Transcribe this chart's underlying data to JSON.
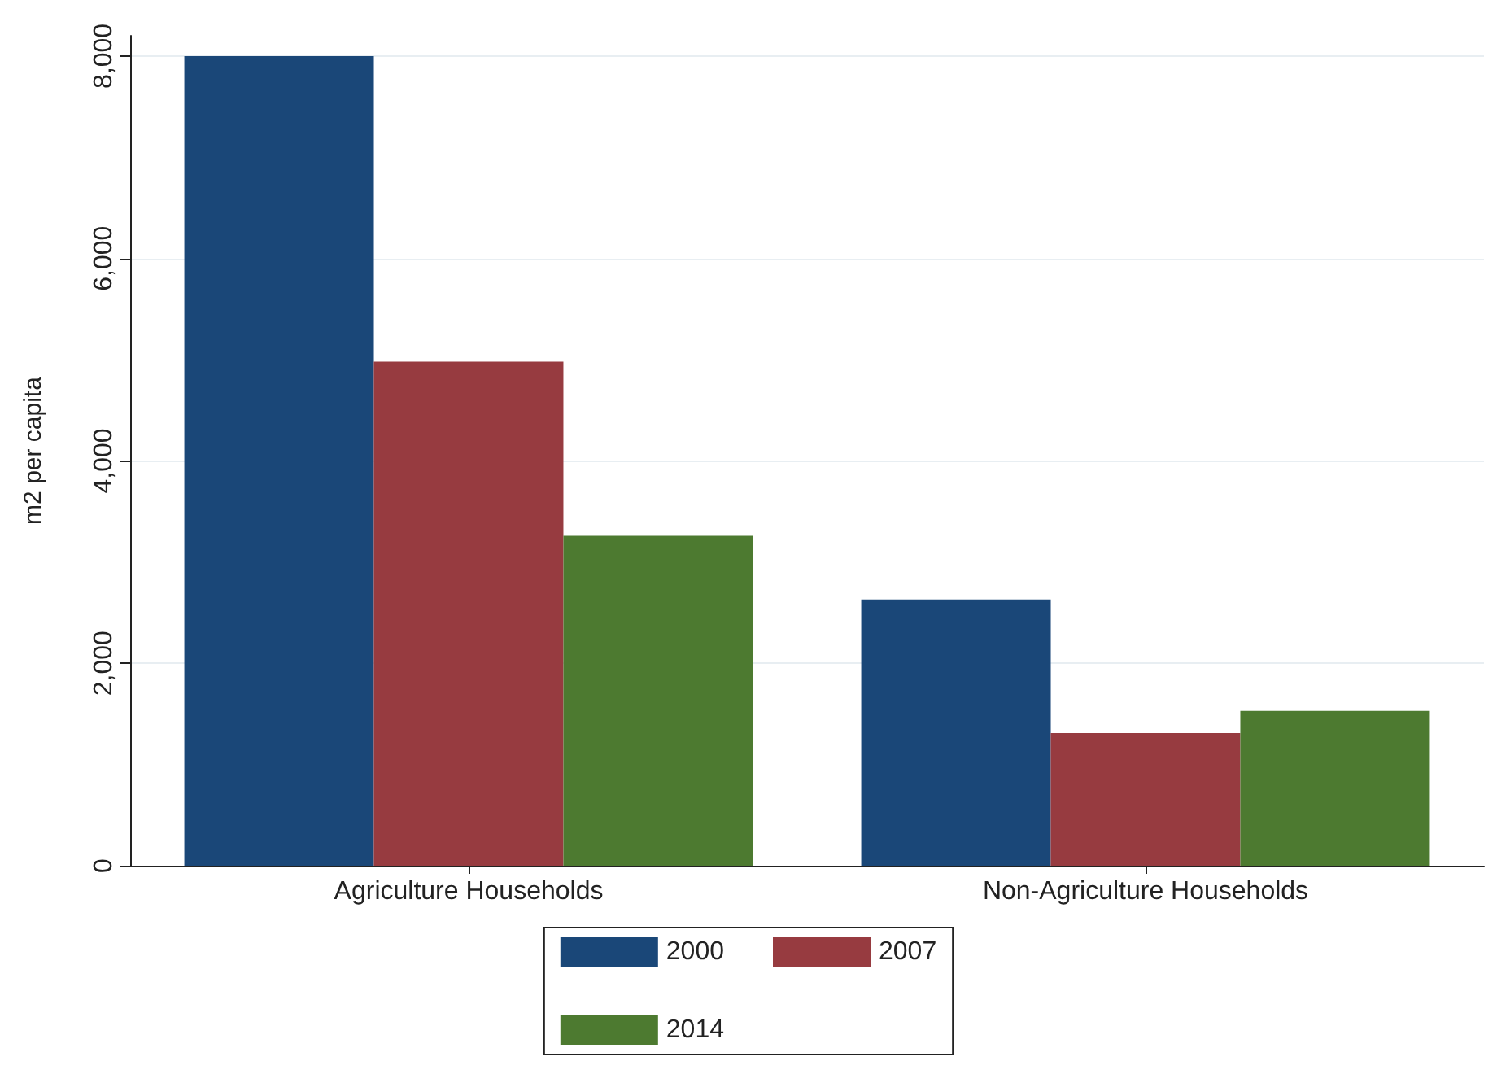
{
  "chart_data": {
    "type": "bar",
    "ylabel": "m2 per capita",
    "categories": [
      "Agriculture Households",
      "Non-Agriculture Households"
    ],
    "series": [
      {
        "name": "2000",
        "color": "#1a4778",
        "values": [
          8000,
          2630
        ]
      },
      {
        "name": "2007",
        "color": "#973b40",
        "values": [
          4980,
          1310
        ]
      },
      {
        "name": "2014",
        "color": "#4d7a30",
        "values": [
          3260,
          1530
        ]
      }
    ],
    "ylim": [
      0,
      8200
    ],
    "yticks": [
      {
        "value": 0,
        "label": "0"
      },
      {
        "value": 2000,
        "label": "2,000"
      },
      {
        "value": 4000,
        "label": "4,000"
      },
      {
        "value": 6000,
        "label": "6,000"
      },
      {
        "value": 8000,
        "label": "8,000"
      }
    ],
    "grid": "y",
    "legend": "bottom"
  }
}
